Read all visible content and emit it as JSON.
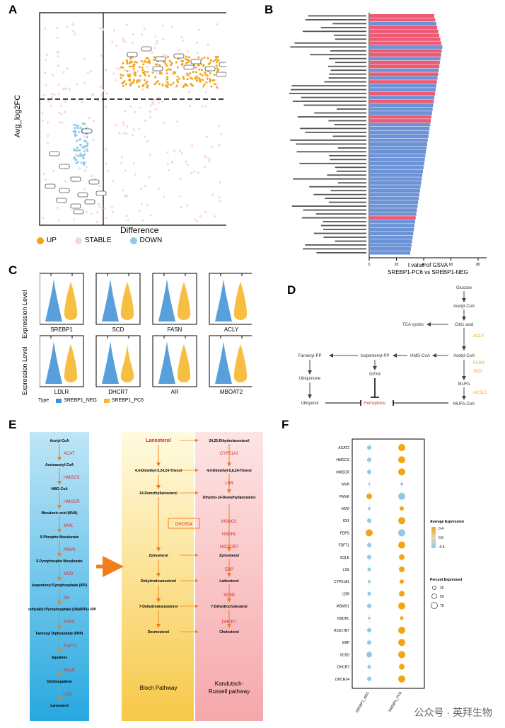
{
  "panels": {
    "a": {
      "label": "A",
      "ylabel": "Avg_log2FC",
      "xlabel": "Difference",
      "legend": [
        {
          "name": "UP",
          "color": "#f2a516"
        },
        {
          "name": "STABLE",
          "color": "#f8d7dc"
        },
        {
          "name": "DOWN",
          "color": "#8ec9e6"
        }
      ]
    },
    "b": {
      "label": "B",
      "xlabel_line1": "t value of GSVA",
      "xlabel_line2": "SREBP1-PC6 vs SREBP1-NEG",
      "ticks": [
        "0",
        "20",
        "40",
        "60",
        "80"
      ]
    },
    "c": {
      "label": "C",
      "ylabel_top": "Expression Level",
      "ylabel_bottom": "Expression Level",
      "genes_top": [
        "SREBP1",
        "SCD",
        "FASN",
        "ACLY"
      ],
      "genes_bottom": [
        "LDLR",
        "DHCR7",
        "AR",
        "MBOAT2"
      ],
      "legend_type": "Type",
      "legend_items": [
        {
          "name": "SREBP1_NEG",
          "color": "#3b8fd6"
        },
        {
          "name": "SREBP1_PC6",
          "color": "#f5b82e"
        }
      ]
    },
    "d": {
      "label": "D",
      "nodes": {
        "glucose": "Glucose",
        "acetyl1": "Acetyl-CoA",
        "citric": "Citric acid",
        "tca": "TCA cycles",
        "acly": "ACLY",
        "acetyl2": "Acetyl-CoA",
        "hmg": "HMG-CoA",
        "ipp": "Isopentenyl-PP",
        "fpp": "Farnesyl-PP",
        "ubiquinone": "Ubiquinone",
        "ubiquinol": "Ubiquinol",
        "gpx4": "GPX4",
        "ferroptosis": "Ferroptosis",
        "fasn": "FASN",
        "scd": "SCD",
        "mufa": "MUFA",
        "acsl3": "ACSL3",
        "mufacoa": "MUFA-CoA"
      }
    },
    "e": {
      "label": "E",
      "left_steps": [
        "Acetyl-CoA",
        "Acetoacetyl-CoA",
        "HMG-CoA",
        "Mevalonic acid (MVA)",
        "5-Phospho Mevalonate",
        "5-Pyrophospho Mevalonate",
        "Isopentenyl Pyrophosphate (IPP)",
        "Dimethylallyl Pyrophosphate (DMAPP)+ IPP",
        "Farnesyl Diphosphate (FPP)",
        "Squalene",
        "Oxidosqualene",
        "Lanosterol"
      ],
      "left_enzymes": [
        "ACAT",
        "HMGCS",
        "HMGCR",
        "MVK",
        "PMVK",
        "MVD",
        "IDI",
        "FPPS",
        "FDFT1",
        "SQLE",
        "LSS"
      ],
      "middle_steps": [
        "Lanosterol",
        "4,4-Dimethyl-5,24,24-Trienol",
        "14-Demethyllanosterol",
        "Zymosterol",
        "Dehydrodesmosterol",
        "7-Dehydrodesmosterol",
        "Desmosterol"
      ],
      "middle_title": "Bloch Pathway",
      "dhcr24": "DHCR24",
      "right_steps": [
        "24,25-Dihydrolanosterol",
        "4,4-Dimethyl-5,8,24-Trienol",
        "Dihydro-14-Demethyllanosterol",
        "Zymostenol",
        "Lathosterol",
        "7-Dehydrocholesterol",
        "Cholesterol"
      ],
      "right_enzymes": [
        "CYP51A1",
        "LBR",
        "MSMO1",
        "NSDHL",
        "HSD17B7",
        "EBP",
        "SC5D",
        "DHCR7"
      ],
      "right_title_line1": "Kandutsch-",
      "right_title_line2": "Russell pathway"
    },
    "f": {
      "label": "F",
      "rows": [
        "ACAT2",
        "HMGCS",
        "HMGCR",
        "MVK",
        "PMVK",
        "MVD",
        "IDI1",
        "FDPS",
        "FDFT1",
        "SQLE",
        "LSS",
        "CYP51A1",
        "LBR",
        "MSMO1",
        "NSDHL",
        "HSD17B7",
        "EBP",
        "SC5D",
        "DHCR7",
        "DHCR24"
      ],
      "cols": [
        "SREBP1_NEG",
        "SREBP1_PC6"
      ],
      "avg_title": "Average Expression",
      "avg_ticks": [
        "0.4",
        "0.0",
        "-0.4"
      ],
      "pct_title": "Percent Expressed",
      "pct_ticks": [
        "25",
        "50",
        "75"
      ],
      "colors": {
        "high": "#f2a516",
        "low": "#8ec9e6"
      }
    }
  },
  "watermark": "公众号 · 英拜生物"
}
